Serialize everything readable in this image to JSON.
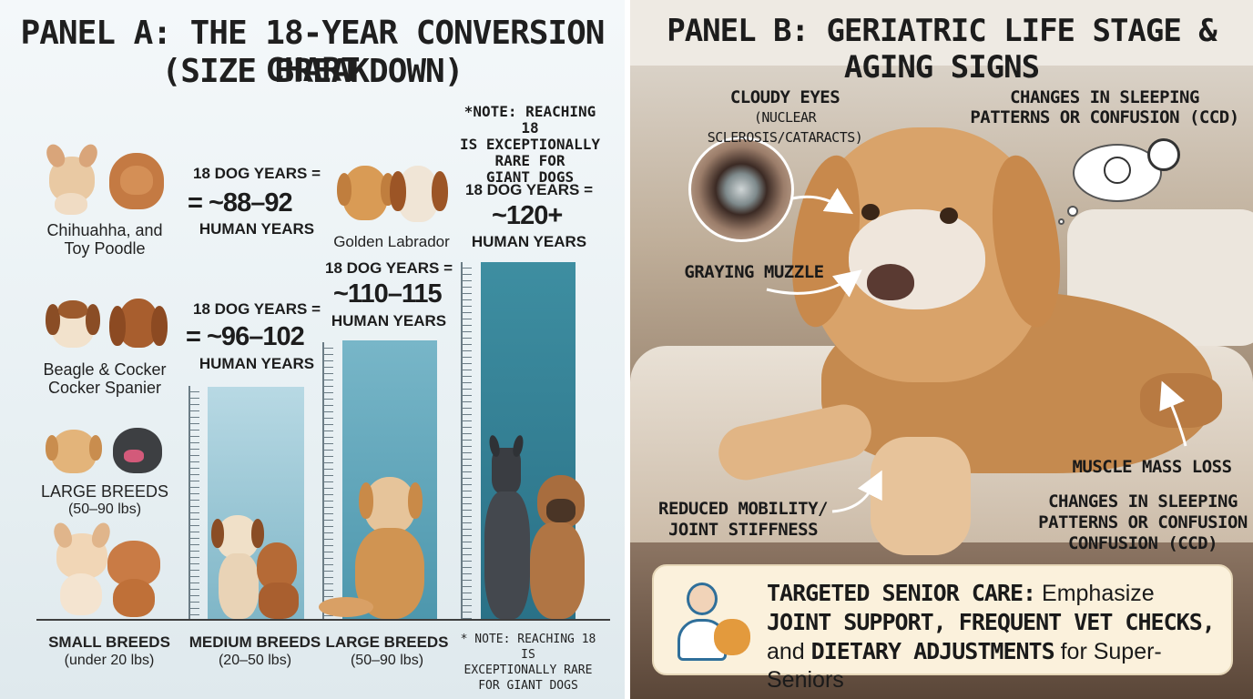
{
  "panel_a": {
    "title_line1": "PANEL A: THE 18-YEAR CONVERSION CHART",
    "title_line2": "(SIZE BREAKDOWN)",
    "left_breeds": [
      {
        "label_line1": "Chihuahha, and",
        "label_line2": "Toy Poodle"
      },
      {
        "label_line1": "Beagle & Cocker",
        "label_line2": "Cocker Spanier"
      },
      {
        "label_line1": "LARGE BREEDS",
        "label_line2": "(50–90 lbs)"
      }
    ],
    "columns": [
      {
        "value_line1": "18 DOG YEARS =",
        "value_prefix": "= ",
        "value_main": "~88–92",
        "value_line3": "HUMAN YEARS",
        "bottom_title": "SMALL BREEDS",
        "bottom_sub": "(under 20 lbs)",
        "bar_fraction": 0.0
      },
      {
        "value_line1": "18 DOG YEARS =",
        "value_prefix": "= ",
        "value_main": "~96–102",
        "value_line3": "HUMAN YEARS",
        "bottom_title": "MEDIUM BREEDS",
        "bottom_sub": "(20–50 lbs)",
        "bar_fraction": 0.65
      },
      {
        "breed_label": "Golden Labrador",
        "value_line1": "18 DOG YEARS =",
        "value_main": "~110–115",
        "value_line3": "HUMAN YEARS",
        "bottom_title": "LARGE BREEDS",
        "bottom_sub": "(50–90 lbs)",
        "bar_fraction": 0.78
      },
      {
        "note_lines": [
          "*NOTE: REACHING 18",
          "IS EXCEPTIONALLY",
          "RARE FOR",
          "GIANT DOGS"
        ],
        "value_line1": "18 DOG YEARS =",
        "value_main": "~120+",
        "value_line3": "HUMAN YEARS",
        "bottom_note_lines": [
          "* NOTE: REACHING 18 IS",
          "EXCEPTIONALLY RARE",
          "FOR GIANT DOGS"
        ],
        "bar_fraction": 1.0
      }
    ]
  },
  "panel_b": {
    "title": "PANEL B: GERIATRIC LIFE STAGE & AGING SIGNS",
    "signs": {
      "cloudy_eyes": "CLOUDY EYES",
      "cloudy_eyes_sub": "(NUCLEAR SCLEROSIS/CATARACTS)",
      "sleep_top_line1": "CHANGES IN SLEEPING",
      "sleep_top_line2": "PATTERNS OR CONFUSION (CCD)",
      "graying": "GRAYING MUZZLE",
      "muscle": "MUSCLE MASS LOSS",
      "sleep_bottom_line1": "CHANGES IN SLEEPING",
      "sleep_bottom_line2": "PATTERNS OR CONFUSION",
      "sleep_bottom_line3": "CONFUSION (CCD)",
      "mobility_line1": "REDUCED MOBILITY/",
      "mobility_line2": "JOINT STIFFNESS"
    },
    "care": {
      "p1_bold": "TARGETED SENIOR CARE:",
      "p2": " Emphasize ",
      "p3_bold": "JOINT SUPPORT, FREQUENT VET CHECKS,",
      "p4": " and ",
      "p5_bold": "DIETARY ADJUSTMENTS",
      "p6": " for Super-Seniors"
    }
  },
  "colors": {
    "bar_light": "#a9cfdc",
    "bar_mid": "#5ea6b9",
    "bar_dark": "#2d7a8f",
    "care_bg": "#fbf1dc"
  }
}
